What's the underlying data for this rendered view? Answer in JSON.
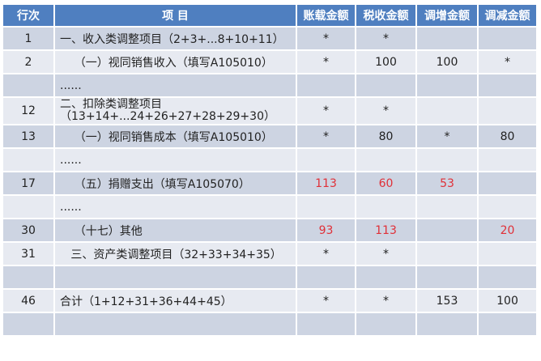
{
  "headers": [
    "行次",
    "项 目",
    "账载金额",
    "税收金额",
    "调增金额",
    "调减金额"
  ],
  "rows": [
    {
      "no": "1",
      "item": "一、收入类调整项目（2+3+...8+10+11）",
      "book": "*",
      "tax": "*",
      "inc": "",
      "dec": ""
    },
    {
      "no": "2",
      "item": "    （一）视同销售收入（填写A105010）",
      "book": "*",
      "tax": "100",
      "inc": "100",
      "dec": "*"
    },
    {
      "no": "",
      "item": "......",
      "book": "",
      "tax": "",
      "inc": "",
      "dec": ""
    },
    {
      "no": "12",
      "item": "二、扣除类调整项目\n（13+14+...24+26+27+28+29+30）",
      "book": "*",
      "tax": "*",
      "inc": "",
      "dec": ""
    },
    {
      "no": "13",
      "item": "    （一）视同销售成本（填写A105010）",
      "book": "*",
      "tax": "80",
      "inc": "*",
      "dec": "80"
    },
    {
      "no": "",
      "item": "......",
      "book": "",
      "tax": "",
      "inc": "",
      "dec": ""
    },
    {
      "no": "17",
      "item": "    （五）捐赠支出（填写A105070）",
      "book": "113",
      "tax": "60",
      "inc": "53",
      "dec": "",
      "red": true
    },
    {
      "no": "",
      "item": "......",
      "book": "",
      "tax": "",
      "inc": "",
      "dec": ""
    },
    {
      "no": "30",
      "item": "    （十七）其他",
      "book": "93",
      "tax": "113",
      "inc": "",
      "dec": "20",
      "red": true
    },
    {
      "no": "31",
      "item": "   三、资产类调整项目（32+33+34+35）",
      "book": "*",
      "tax": "*",
      "inc": "",
      "dec": ""
    },
    {
      "no": "",
      "item": "",
      "book": "",
      "tax": "",
      "inc": "",
      "dec": ""
    },
    {
      "no": "46",
      "item": "合计（1+12+31+36+44+45）",
      "book": "*",
      "tax": "*",
      "inc": "153",
      "dec": "100"
    },
    {
      "no": "",
      "item": "",
      "book": "",
      "tax": "",
      "inc": "",
      "dec": ""
    }
  ],
  "colors": {
    "header": "#4f7fc0",
    "row_dark": "#cdd4e2",
    "row_light": "#e7eaf1",
    "highlight": "#e03038"
  }
}
